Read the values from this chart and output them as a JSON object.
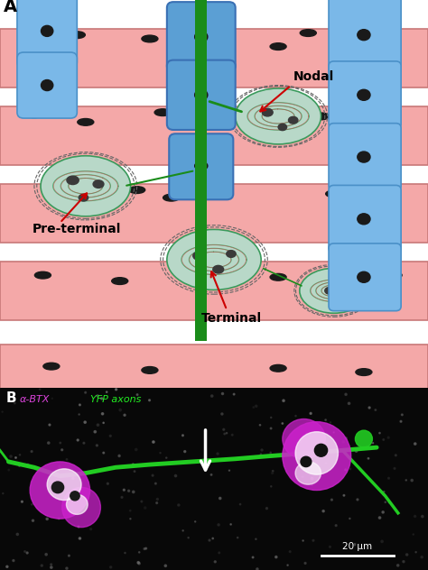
{
  "panel_A_label": "A",
  "panel_B_label": "B",
  "muscle_stripe_color": "#F4A8A8",
  "muscle_border_color": "#C87878",
  "muscle_stripe_dark": "#E89090",
  "bg_color": "#FFFFFF",
  "schwann_blue": "#7AB8E8",
  "schwann_dark_blue": "#4A90C8",
  "schwann_nucleus_color": "#1A1A1A",
  "node_blue": "#5B9FD4",
  "axon_green": "#1A8C1A",
  "terminal_bg": "#B8D8C8",
  "terminal_border": "#3A9A5C",
  "terminal_nucleus": "#3A3A3A",
  "red_arrow_color": "#CC0000",
  "nodal_label": "Nodal",
  "preterminal_label": "Pre-terminal",
  "terminal_label": "Terminal",
  "btx_label": "α-BTX",
  "yfp_label": "YFP axons",
  "scale_label": "20 μm",
  "panel_b_bg": "#080808",
  "arrow_color": "#FFFFFF",
  "green_axon": "#22CC22",
  "magenta_terminal": "#CC22CC",
  "figsize": [
    4.74,
    6.32
  ],
  "dpi": 100
}
